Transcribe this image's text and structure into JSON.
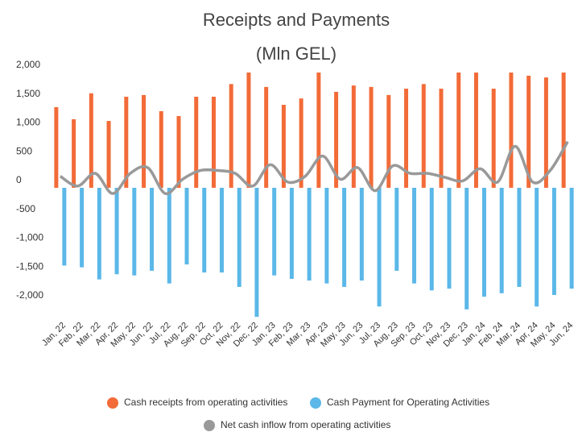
{
  "chart_data": {
    "type": "bar_line",
    "title": "Receipts and Payments",
    "subtitle": "(Mln GEL)",
    "categories": [
      "Jan, 22",
      "Feb, 22",
      "Mar, 22",
      "Apr, 22",
      "May, 22",
      "Jun, 22",
      "Jul, 22",
      "Aug, 22",
      "Sep, 22",
      "Oct, 22",
      "Nov, 22",
      "Dec, 22",
      "Jan, 23",
      "Feb, 23",
      "Mar, 23",
      "Apr, 23",
      "May, 23",
      "Jun, 23",
      "Jul, 23",
      "Aug, 23",
      "Sep, 23",
      "Oct, 23",
      "Nov, 23",
      "Dec, 23",
      "Jan, 24",
      "Feb, 24",
      "Mar, 24",
      "Apr, 24",
      "May, 24",
      "Jun, 24"
    ],
    "series": [
      {
        "name": "Cash receipts from operating activities",
        "color": "#f26b38",
        "kind": "bar",
        "values": [
          1400,
          1190,
          1640,
          1160,
          1580,
          1610,
          1330,
          1245,
          1580,
          1580,
          1800,
          2000,
          1750,
          1440,
          1550,
          2000,
          1665,
          1775,
          1750,
          1610,
          1720,
          1800,
          1720,
          2000,
          2000,
          1720,
          2000,
          1945,
          1915,
          2000
        ]
      },
      {
        "name": "Cash Payment for Operating Activities",
        "color": "#5bb8e8",
        "kind": "bar",
        "values": [
          -1350,
          -1380,
          -1590,
          -1500,
          -1520,
          -1440,
          -1660,
          -1330,
          -1470,
          -1470,
          -1720,
          -2240,
          -1520,
          -1580,
          -1610,
          -1660,
          -1720,
          -1610,
          -2060,
          -1440,
          -1660,
          -1780,
          -1750,
          -2110,
          -1890,
          -1830,
          -1720,
          -2060,
          -1860,
          -1750
        ]
      },
      {
        "name": "Net cash inflow from operating activities",
        "color": "#999999",
        "kind": "line",
        "values": [
          200,
          30,
          250,
          -100,
          250,
          350,
          -100,
          150,
          300,
          300,
          250,
          30,
          400,
          100,
          200,
          550,
          150,
          350,
          -50,
          380,
          250,
          250,
          180,
          120,
          330,
          100,
          720,
          100,
          300,
          800
        ]
      }
    ],
    "ylim": [
      -2250,
      2000
    ],
    "yticks": [
      {
        "value": -2000,
        "label": "-2,000"
      },
      {
        "value": -1500,
        "label": "-1,500"
      },
      {
        "value": -1000,
        "label": "-1,000"
      },
      -500,
      0,
      500,
      {
        "value": 1000,
        "label": "1,000"
      },
      {
        "value": 1500,
        "label": "1,500"
      },
      {
        "value": 2000,
        "label": "2,000"
      }
    ]
  }
}
